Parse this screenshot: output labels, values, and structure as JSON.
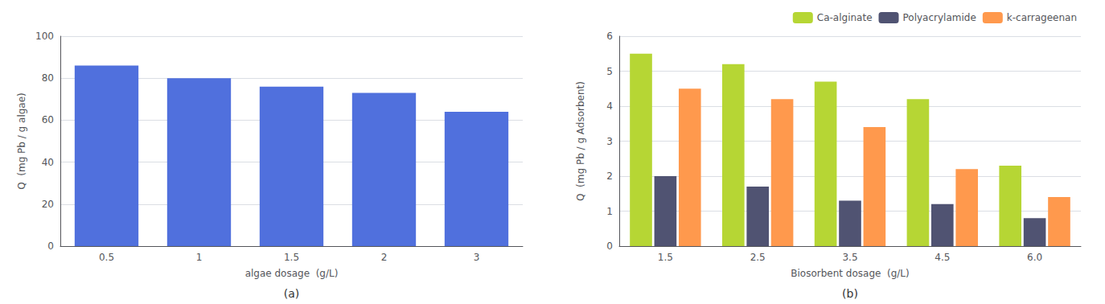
{
  "chart_data": [
    {
      "type": "bar",
      "title": "(a)",
      "xlabel": "algae dosage  (g/L)",
      "ylabel": "Q  (mg Pb / g algae)",
      "categories": [
        "0.5",
        "1",
        "1.5",
        "2",
        "3"
      ],
      "values": [
        86,
        80,
        76,
        73,
        64
      ],
      "ylim": [
        0,
        100
      ],
      "yticks": [
        0,
        20,
        40,
        60,
        80,
        100
      ],
      "grid": true
    },
    {
      "type": "bar",
      "title": "(b)",
      "xlabel": "Biosorbent dosage  (g/L)",
      "ylabel": "Q  (mg Pb / g Adsorbent)",
      "categories": [
        "1.5",
        "2.5",
        "3.5",
        "4.5",
        "6.0"
      ],
      "series": [
        {
          "name": "Ca-alginate",
          "values": [
            5.5,
            5.2,
            4.7,
            4.2,
            2.3
          ]
        },
        {
          "name": "Polyacrylamide",
          "values": [
            2.0,
            1.7,
            1.3,
            1.2,
            0.8
          ]
        },
        {
          "name": "k-carrageenan",
          "values": [
            4.5,
            4.2,
            3.4,
            2.2,
            1.4
          ]
        }
      ],
      "ylim": [
        0,
        6
      ],
      "yticks": [
        0,
        1,
        2,
        3,
        4,
        5,
        6
      ],
      "grid": true,
      "legend": "upper right"
    }
  ]
}
